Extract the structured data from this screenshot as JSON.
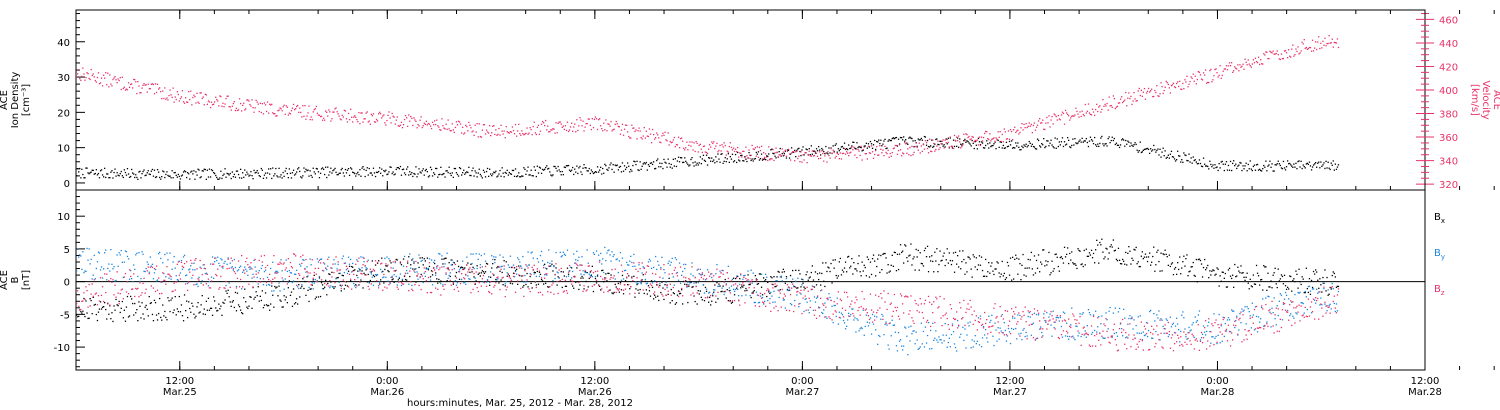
{
  "colors": {
    "black": "#000000",
    "pink": "#e8336a",
    "blue": "#1b86e0"
  },
  "chart_data": [
    {
      "type": "scatter",
      "panel": "top",
      "ylabel": [
        "ACE",
        "Ion Density",
        "[cm⁻³]"
      ],
      "ylabel_right": [
        "ACE",
        "Velocity",
        "[km/s]"
      ],
      "yticks": [
        "0",
        "10",
        "20",
        "30",
        "40"
      ],
      "yticks_right": [
        "320",
        "340",
        "360",
        "380",
        "400",
        "420",
        "440",
        "460"
      ],
      "ylim": [
        -2,
        49
      ],
      "ylim_right": [
        315,
        468
      ],
      "series": [
        {
          "color": "black",
          "axis": "left",
          "x": [
            "Mar.25 06:00",
            "Mar.25 12:00",
            "Mar.25 18:00",
            "Mar.26 00:00",
            "Mar.26 06:00",
            "Mar.26 12:00",
            "Mar.26 18:00",
            "Mar.27 00:00",
            "Mar.27 06:00",
            "Mar.27 12:00",
            "Mar.27 18:00",
            "Mar.28 00:00",
            "Mar.28 06:00"
          ],
          "values": [
            3,
            2.5,
            3,
            3.5,
            3,
            4,
            6.5,
            9,
            12,
            11,
            12,
            5,
            5
          ]
        },
        {
          "color": "pink",
          "axis": "right",
          "x": [
            "Mar.25 06:00",
            "Mar.25 12:00",
            "Mar.25 18:00",
            "Mar.26 00:00",
            "Mar.26 06:00",
            "Mar.26 12:00",
            "Mar.26 18:00",
            "Mar.27 00:00",
            "Mar.27 06:00",
            "Mar.27 12:00",
            "Mar.27 18:00",
            "Mar.28 00:00",
            "Mar.28 06:00"
          ],
          "values": [
            415,
            395,
            383,
            376,
            365,
            372,
            353,
            343,
            350,
            363,
            390,
            415,
            442
          ]
        }
      ]
    },
    {
      "type": "scatter",
      "panel": "bottom",
      "ylabel": [
        "ACE",
        "B",
        "[nT]"
      ],
      "yticks": [
        "-10",
        "-5",
        "0",
        "5",
        "10"
      ],
      "ylim": [
        -13.5,
        14
      ],
      "legend": [
        {
          "label": "B",
          "sub": "x",
          "color": "black"
        },
        {
          "label": "B",
          "sub": "y",
          "color": "blue"
        },
        {
          "label": "B",
          "sub": "z",
          "color": "pink"
        }
      ],
      "series": [
        {
          "name": "Bx",
          "color": "black",
          "x": [
            "Mar.25 06:00",
            "Mar.25 12:00",
            "Mar.25 18:00",
            "Mar.26 00:00",
            "Mar.26 06:00",
            "Mar.26 12:00",
            "Mar.26 18:00",
            "Mar.27 00:00",
            "Mar.27 06:00",
            "Mar.27 12:00",
            "Mar.27 18:00",
            "Mar.28 00:00",
            "Mar.28 06:00"
          ],
          "values": [
            -4,
            -4,
            -2,
            2,
            1.5,
            0.5,
            -2,
            0.5,
            4,
            2,
            5,
            1,
            0
          ]
        },
        {
          "name": "By",
          "color": "blue",
          "x": [
            "Mar.25 06:00",
            "Mar.25 12:00",
            "Mar.25 18:00",
            "Mar.26 00:00",
            "Mar.26 06:00",
            "Mar.26 12:00",
            "Mar.26 18:00",
            "Mar.27 00:00",
            "Mar.27 06:00",
            "Mar.27 12:00",
            "Mar.27 18:00",
            "Mar.28 00:00",
            "Mar.28 06:00"
          ],
          "values": [
            3,
            2,
            1,
            2,
            2,
            3,
            1,
            -2,
            -9,
            -7,
            -6,
            -7,
            -2
          ]
        },
        {
          "name": "Bz",
          "color": "pink",
          "x": [
            "Mar.25 06:00",
            "Mar.25 12:00",
            "Mar.25 18:00",
            "Mar.26 00:00",
            "Mar.26 06:00",
            "Mar.26 12:00",
            "Mar.26 18:00",
            "Mar.27 00:00",
            "Mar.27 06:00",
            "Mar.27 12:00",
            "Mar.27 18:00",
            "Mar.28 00:00",
            "Mar.28 06:00"
          ],
          "values": [
            -2,
            1,
            2,
            1,
            0,
            1,
            0,
            -3,
            -4,
            -6,
            -8,
            -8,
            -3
          ]
        }
      ]
    }
  ],
  "x_axis": {
    "ticks": [
      {
        "time": "12:00",
        "date": "Mar.25"
      },
      {
        "time": "0:00",
        "date": "Mar.26"
      },
      {
        "time": "12:00",
        "date": "Mar.26"
      },
      {
        "time": "0:00",
        "date": "Mar.27"
      },
      {
        "time": "12:00",
        "date": "Mar.27"
      },
      {
        "time": "0:00",
        "date": "Mar.28"
      },
      {
        "time": "12:00",
        "date": "Mar.28"
      }
    ],
    "title": "hours:minutes, Mar. 25, 2012 - Mar. 28, 2012"
  }
}
